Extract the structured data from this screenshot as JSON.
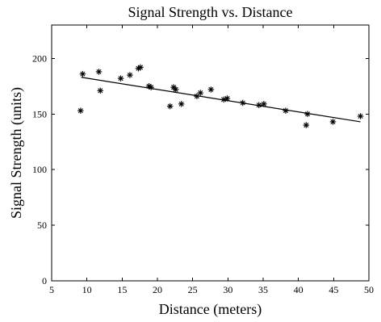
{
  "chart_data": {
    "type": "scatter",
    "title": "Signal Strength vs. Distance",
    "xlabel": "Distance (meters)",
    "ylabel": "Signal Strength (units)",
    "xlim": [
      5,
      50
    ],
    "ylim": [
      0,
      230
    ],
    "xticks": [
      5,
      10,
      15,
      20,
      25,
      30,
      35,
      40,
      45,
      50
    ],
    "yticks": [
      0,
      50,
      100,
      150,
      200
    ],
    "grid": false,
    "legend": "none",
    "colors": {
      "marker": "#000000",
      "fit_line": "#000000",
      "axes": "#000000",
      "background": "#ffffff"
    },
    "series": [
      {
        "marker": "asterisk",
        "points": [
          {
            "x": 9.1,
            "y": 153
          },
          {
            "x": 9.4,
            "y": 186
          },
          {
            "x": 11.7,
            "y": 188
          },
          {
            "x": 11.9,
            "y": 171
          },
          {
            "x": 14.8,
            "y": 182
          },
          {
            "x": 16.1,
            "y": 185
          },
          {
            "x": 17.3,
            "y": 191
          },
          {
            "x": 17.6,
            "y": 192
          },
          {
            "x": 18.8,
            "y": 175
          },
          {
            "x": 19.1,
            "y": 174
          },
          {
            "x": 21.8,
            "y": 157
          },
          {
            "x": 22.3,
            "y": 174
          },
          {
            "x": 22.6,
            "y": 172
          },
          {
            "x": 23.4,
            "y": 159
          },
          {
            "x": 25.6,
            "y": 166
          },
          {
            "x": 26.1,
            "y": 169
          },
          {
            "x": 27.6,
            "y": 172
          },
          {
            "x": 29.4,
            "y": 163
          },
          {
            "x": 29.9,
            "y": 164
          },
          {
            "x": 32.1,
            "y": 160
          },
          {
            "x": 34.4,
            "y": 158
          },
          {
            "x": 35.1,
            "y": 159
          },
          {
            "x": 38.2,
            "y": 153
          },
          {
            "x": 41.1,
            "y": 140
          },
          {
            "x": 41.3,
            "y": 150
          },
          {
            "x": 44.9,
            "y": 143
          },
          {
            "x": 48.8,
            "y": 148
          }
        ]
      }
    ],
    "fit_line": {
      "type": "linear",
      "from": {
        "x": 9.2,
        "y": 183
      },
      "to": {
        "x": 48.8,
        "y": 143
      }
    }
  }
}
